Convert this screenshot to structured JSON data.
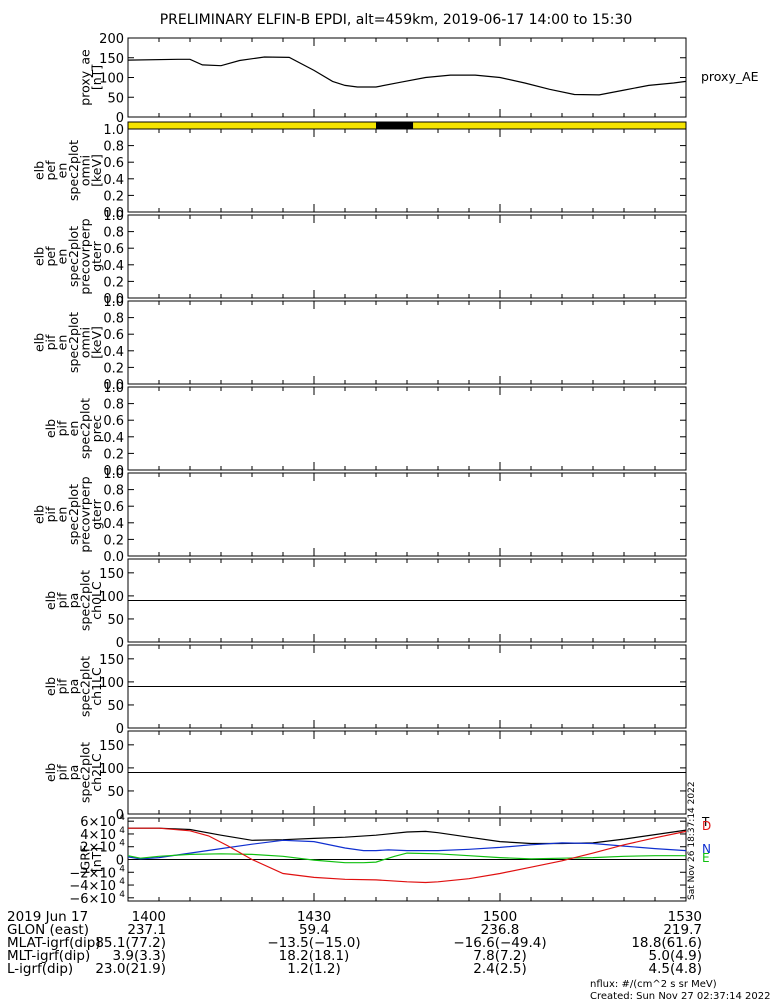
{
  "title": "PRELIMINARY ELFIN-B EPDI, alt=459km, 2019-06-17 14:00 to 15:30",
  "chart_data": [
    {
      "type": "line",
      "panel": "proxy_ae",
      "ylabel_lines": [
        "proxy_ae",
        "[nT]"
      ],
      "yticks": [
        "200",
        "150",
        "100",
        "50",
        "0"
      ],
      "ylim": [
        0,
        200
      ],
      "series": [
        {
          "name": "proxy_AE",
          "color": "#000000",
          "x": [
            0,
            8,
            10,
            12,
            15,
            18,
            22,
            26,
            30,
            33,
            35,
            37,
            40,
            44,
            48,
            52,
            56,
            60,
            64,
            68,
            72,
            76,
            80,
            84,
            88,
            90
          ],
          "y": [
            144,
            146,
            146,
            132,
            130,
            143,
            152,
            151,
            118,
            90,
            80,
            76,
            76,
            88,
            100,
            106,
            106,
            100,
            86,
            70,
            57,
            56,
            68,
            80,
            86,
            90
          ]
        }
      ]
    },
    {
      "type": "bar",
      "panel": "orbit-bar",
      "segments": [
        {
          "start": 0,
          "end": 40,
          "color": "#f5e400"
        },
        {
          "start": 40,
          "end": 46,
          "color": "#000000"
        },
        {
          "start": 46,
          "end": 90,
          "color": "#f5e400"
        }
      ]
    },
    {
      "type": "line",
      "panel": "elb_pef_en_spec2plot_omni",
      "ylabel_lines": [
        "elb",
        "pef",
        "en",
        "spec2plot",
        "omni",
        "[keV]"
      ],
      "yticks": [
        "1.0",
        "0.8",
        "0.6",
        "0.4",
        "0.2",
        "0.0"
      ],
      "ylim": [
        0,
        1
      ],
      "series": []
    },
    {
      "type": "line",
      "panel": "elb_pef_en_spec2plot_precovrperp_gterr",
      "ylabel_lines": [
        "elb",
        "pef",
        "en",
        "spec2plot",
        "precovrperp",
        "gterr"
      ],
      "yticks": [
        "1.0",
        "0.8",
        "0.6",
        "0.4",
        "0.2",
        "0.0"
      ],
      "ylim": [
        0,
        1
      ],
      "series": []
    },
    {
      "type": "line",
      "panel": "elb_pif_en_spec2plot_omni",
      "ylabel_lines": [
        "elb",
        "pif",
        "en",
        "spec2plot",
        "omni",
        "[keV]"
      ],
      "yticks": [
        "1.0",
        "0.8",
        "0.6",
        "0.4",
        "0.2",
        "0.0"
      ],
      "ylim": [
        0,
        1
      ],
      "series": []
    },
    {
      "type": "line",
      "panel": "elb_pif_en_spec2plot_prec",
      "ylabel_lines": [
        "elb",
        "pif",
        "en",
        "spec2plot",
        "prec"
      ],
      "yticks": [
        "1.0",
        "0.8",
        "0.6",
        "0.4",
        "0.2",
        "0.0"
      ],
      "ylim": [
        0,
        1
      ],
      "series": []
    },
    {
      "type": "line",
      "panel": "elb_pif_en_spec2plot_precovrperp_gterr",
      "ylabel_lines": [
        "elb",
        "pif",
        "en",
        "spec2plot",
        "precovrperp",
        "gterr"
      ],
      "yticks": [
        "1.0",
        "0.8",
        "0.6",
        "0.4",
        "0.2",
        "0.0"
      ],
      "ylim": [
        0,
        1
      ],
      "series": []
    },
    {
      "type": "line",
      "panel": "elb_pif_pa_spec2plot_ch0LC",
      "ylabel_lines": [
        "elb",
        "pif",
        "pa",
        "spec2plot",
        "ch0LC"
      ],
      "yticks": [
        "150",
        "100",
        "50",
        "0"
      ],
      "ylim": [
        0,
        180
      ],
      "hline": 90,
      "series": []
    },
    {
      "type": "line",
      "panel": "elb_pif_pa_spec2plot_ch1LC",
      "ylabel_lines": [
        "elb",
        "pif",
        "pa",
        "spec2plot",
        "ch1LC"
      ],
      "yticks": [
        "150",
        "100",
        "50",
        "0"
      ],
      "ylim": [
        0,
        180
      ],
      "hline": 90,
      "series": []
    },
    {
      "type": "line",
      "panel": "elb_pif_pa_spec2plot_ch2LC",
      "ylabel_lines": [
        "elb",
        "pif",
        "pa",
        "spec2plot",
        "ch2LC"
      ],
      "yticks": [
        "150",
        "100",
        "50",
        "0"
      ],
      "ylim": [
        0,
        180
      ],
      "hline": 90,
      "series": []
    },
    {
      "type": "line",
      "panel": "IGRF",
      "ylabel_lines": [
        "IGRF",
        "[nT]"
      ],
      "yticks": [
        {
          "v": 60000,
          "base": "6×10",
          "exp": "4"
        },
        {
          "v": 40000,
          "base": "4×10",
          "exp": "4"
        },
        {
          "v": 20000,
          "base": "2×10",
          "exp": "4"
        },
        {
          "v": 0,
          "base": "0",
          "exp": ""
        },
        {
          "v": -20000,
          "base": "−2×10",
          "exp": "4"
        },
        {
          "v": -40000,
          "base": "−4×10",
          "exp": "4"
        },
        {
          "v": -60000,
          "base": "−6×10",
          "exp": "4"
        }
      ],
      "ylim": [
        -65000,
        65000
      ],
      "hline": 0,
      "series": [
        {
          "name": "T",
          "color": "#000000",
          "x": [
            0,
            5,
            10,
            15,
            20,
            25,
            30,
            35,
            40,
            45,
            48,
            50,
            55,
            60,
            65,
            70,
            75,
            80,
            85,
            90
          ],
          "y": [
            49000,
            49000,
            47000,
            38000,
            30000,
            31000,
            33000,
            35000,
            38000,
            43000,
            44000,
            42000,
            35000,
            28000,
            25000,
            25000,
            26000,
            32000,
            39000,
            46000
          ]
        },
        {
          "name": "N",
          "color": "#1030d0",
          "x": [
            0,
            2,
            5,
            10,
            15,
            20,
            25,
            30,
            35,
            38,
            40,
            42,
            45,
            50,
            55,
            60,
            65,
            70,
            75,
            80,
            85,
            90
          ],
          "y": [
            4000,
            1000,
            3000,
            10000,
            17000,
            24000,
            30000,
            28000,
            18000,
            14000,
            14000,
            15000,
            14000,
            14000,
            16000,
            19000,
            23000,
            26000,
            25000,
            21000,
            17000,
            14000
          ]
        },
        {
          "name": "E",
          "color": "#10c010",
          "x": [
            0,
            2,
            5,
            10,
            15,
            20,
            25,
            30,
            35,
            38,
            40,
            43,
            45,
            50,
            55,
            60,
            65,
            70,
            75,
            80,
            85,
            90
          ],
          "y": [
            6000,
            2000,
            5000,
            8000,
            9000,
            8000,
            5000,
            -1000,
            -5000,
            -5000,
            -4000,
            5000,
            10000,
            9000,
            6000,
            3000,
            1000,
            2000,
            3000,
            5000,
            6000,
            6000
          ]
        },
        {
          "name": "D",
          "color": "#e01010",
          "x": [
            0,
            5,
            10,
            13,
            16,
            20,
            25,
            30,
            35,
            40,
            45,
            48,
            50,
            55,
            60,
            65,
            70,
            75,
            80,
            85,
            90
          ],
          "y": [
            49000,
            49000,
            45000,
            37000,
            22000,
            0,
            -22000,
            -28000,
            -31000,
            -32000,
            -35000,
            -36000,
            -35000,
            -30000,
            -22000,
            -12000,
            -2000,
            10000,
            23000,
            34000,
            44000
          ]
        }
      ]
    }
  ],
  "legend_names": {
    "T": "T",
    "D": "D",
    "N": "N",
    "E": "E"
  },
  "xaxis": {
    "range_minutes": [
      0,
      90
    ],
    "ticks": [
      {
        "x": 0,
        "label": "1400"
      },
      {
        "x": 30,
        "label": "1430"
      },
      {
        "x": 60,
        "label": "1500"
      },
      {
        "x": 90,
        "label": "1530"
      }
    ]
  },
  "footer_rows": [
    {
      "label": "2019 Jun 17",
      "values": [
        "1400",
        "1430",
        "1500",
        "1530"
      ]
    },
    {
      "label": "GLON (east)",
      "values": [
        "237.1",
        "59.4",
        "236.8",
        "219.7"
      ]
    },
    {
      "label": "MLAT-igrf(dip)",
      "values": [
        "85.1(77.2)",
        "−13.5(−15.0)",
        "−16.6(−49.4)",
        "18.8(61.6)"
      ]
    },
    {
      "label": "MLT-igrf(dip)",
      "values": [
        "3.9(3.3)",
        "18.2(18.1)",
        "7.8(7.2)",
        "5.0(4.9)"
      ]
    },
    {
      "label": "L-igrf(dip)",
      "values": [
        "23.0(21.9)",
        "1.2(1.2)",
        "2.4(2.5)",
        "4.5(4.8)"
      ]
    }
  ],
  "right_label": "proxy_AE",
  "side_stamp": "Sat Nov 26 18:37:14 2022",
  "nflux_note": "nflux: #/(cm^2 s sr MeV)",
  "created_note": "Created: Sun Nov 27 02:37:14 2022"
}
